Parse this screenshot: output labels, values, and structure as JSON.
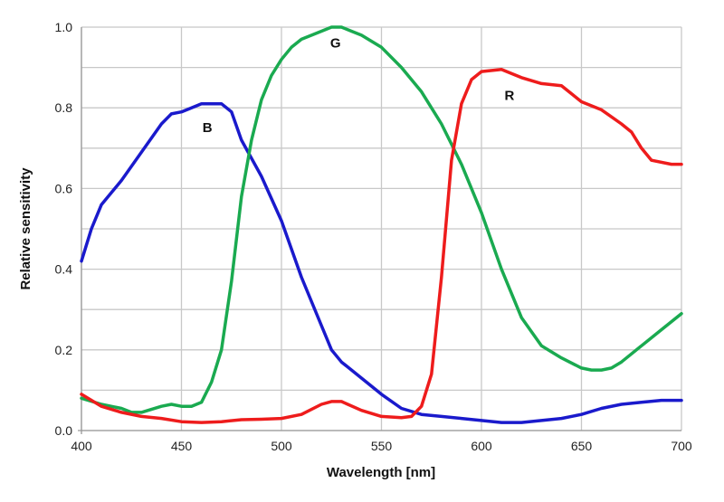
{
  "chart_data": {
    "type": "line",
    "title": "",
    "xlabel": "Wavelength [nm]",
    "ylabel": "Relative sensitivity",
    "xlim": [
      400,
      700
    ],
    "ylim": [
      0,
      1.0
    ],
    "xticks": [
      "400",
      "450",
      "500",
      "550",
      "600",
      "650",
      "700"
    ],
    "yticks": [
      "0.0",
      "0.2",
      "0.4",
      "0.6",
      "0.8",
      "1.0"
    ],
    "grid": true,
    "legend": "none",
    "series": [
      {
        "name": "B",
        "color": "#1a1acc",
        "x": [
          400,
          405,
          410,
          420,
          430,
          440,
          445,
          450,
          455,
          460,
          470,
          475,
          480,
          490,
          500,
          510,
          520,
          525,
          530,
          540,
          550,
          560,
          570,
          580,
          590,
          600,
          610,
          620,
          630,
          640,
          650,
          660,
          670,
          680,
          690,
          700
        ],
        "y": [
          0.42,
          0.5,
          0.56,
          0.62,
          0.69,
          0.76,
          0.785,
          0.79,
          0.8,
          0.81,
          0.81,
          0.79,
          0.72,
          0.63,
          0.52,
          0.38,
          0.26,
          0.2,
          0.17,
          0.13,
          0.09,
          0.055,
          0.04,
          0.035,
          0.03,
          0.025,
          0.02,
          0.02,
          0.025,
          0.03,
          0.04,
          0.055,
          0.065,
          0.07,
          0.075,
          0.075
        ]
      },
      {
        "name": "G",
        "color": "#1aaa50",
        "x": [
          400,
          410,
          420,
          425,
          430,
          440,
          445,
          450,
          455,
          460,
          465,
          470,
          475,
          480,
          485,
          490,
          495,
          500,
          505,
          510,
          520,
          525,
          530,
          535,
          540,
          550,
          560,
          570,
          580,
          590,
          600,
          610,
          620,
          630,
          640,
          650,
          655,
          660,
          665,
          670,
          680,
          690,
          700
        ],
        "y": [
          0.08,
          0.065,
          0.055,
          0.045,
          0.045,
          0.06,
          0.065,
          0.06,
          0.06,
          0.07,
          0.12,
          0.2,
          0.37,
          0.58,
          0.72,
          0.82,
          0.88,
          0.92,
          0.95,
          0.97,
          0.99,
          1.0,
          1.0,
          0.99,
          0.98,
          0.95,
          0.9,
          0.84,
          0.76,
          0.66,
          0.54,
          0.4,
          0.28,
          0.21,
          0.18,
          0.155,
          0.15,
          0.15,
          0.155,
          0.17,
          0.21,
          0.25,
          0.29
        ]
      },
      {
        "name": "R",
        "color": "#ee1c1c",
        "x": [
          400,
          410,
          420,
          430,
          440,
          450,
          460,
          470,
          480,
          490,
          500,
          510,
          520,
          525,
          530,
          540,
          550,
          560,
          565,
          570,
          575,
          580,
          585,
          590,
          595,
          600,
          610,
          615,
          620,
          630,
          640,
          650,
          660,
          670,
          675,
          680,
          685,
          695,
          700
        ],
        "y": [
          0.09,
          0.06,
          0.045,
          0.035,
          0.03,
          0.022,
          0.02,
          0.022,
          0.027,
          0.028,
          0.03,
          0.04,
          0.065,
          0.072,
          0.072,
          0.05,
          0.035,
          0.032,
          0.035,
          0.06,
          0.14,
          0.38,
          0.67,
          0.81,
          0.87,
          0.89,
          0.895,
          0.885,
          0.875,
          0.86,
          0.855,
          0.815,
          0.795,
          0.76,
          0.74,
          0.7,
          0.67,
          0.66,
          0.66
        ]
      }
    ],
    "annotations": [
      {
        "text": "B",
        "x": 463,
        "y": 0.74
      },
      {
        "text": "G",
        "x": 527,
        "y": 0.95
      },
      {
        "text": "R",
        "x": 614,
        "y": 0.82
      }
    ]
  }
}
